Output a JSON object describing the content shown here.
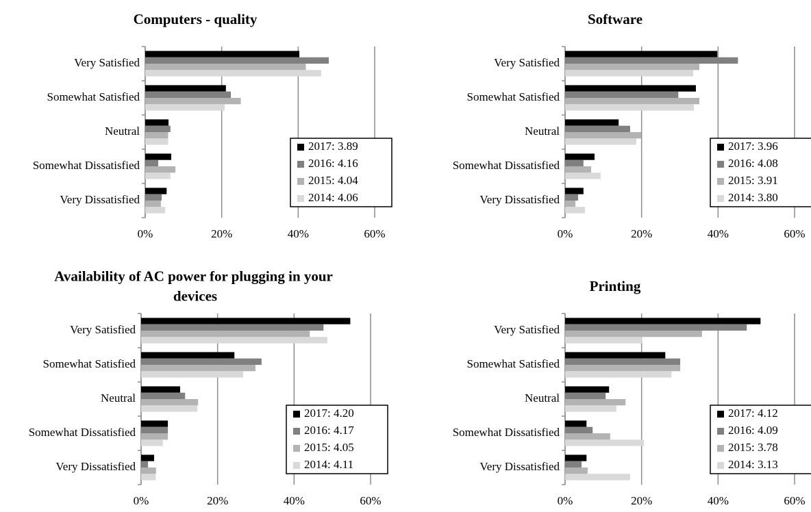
{
  "chart_data": [
    {
      "type": "bar",
      "orientation": "horizontal",
      "title": "Computers - quality",
      "categories": [
        "Very Satisfied",
        "Somewhat Satisfied",
        "Neutral",
        "Somewhat Dissatisfied",
        "Very Dissatisfied"
      ],
      "series": [
        {
          "name": "2017: 3.89",
          "color": "#000000",
          "values": [
            40.3,
            21.1,
            6.1,
            6.8,
            5.6
          ]
        },
        {
          "name": "2016: 4.16",
          "color": "#808080",
          "values": [
            48,
            22.4,
            6.6,
            3.4,
            4.3
          ]
        },
        {
          "name": "2015: 4.04",
          "color": "#b3b3b3",
          "values": [
            42,
            25,
            6,
            7.9,
            4.1
          ]
        },
        {
          "name": "2014: 4.06",
          "color": "#d9d9d9",
          "values": [
            46,
            20.8,
            6,
            6.6,
            5.2
          ]
        }
      ],
      "xlim": [
        0,
        60
      ],
      "xticks": [
        {
          "value": 0,
          "label": "0%"
        },
        {
          "value": 20,
          "label": "20%"
        },
        {
          "value": 40,
          "label": "40%"
        },
        {
          "value": 60,
          "label": "60%"
        }
      ],
      "grid": true,
      "legend": "lower right"
    },
    {
      "type": "bar",
      "orientation": "horizontal",
      "title": "Software",
      "categories": [
        "Very Satisfied",
        "Somewhat Satisfied",
        "Neutral",
        "Somewhat Dissatisfied",
        "Very Dissatisfied"
      ],
      "series": [
        {
          "name": "2017: 3.96",
          "color": "#000000",
          "values": [
            39.8,
            34.2,
            14,
            7.7,
            4.8
          ]
        },
        {
          "name": "2016: 4.08",
          "color": "#808080",
          "values": [
            45.2,
            29.6,
            17,
            4.8,
            3.4
          ]
        },
        {
          "name": "2015: 3.91",
          "color": "#b3b3b3",
          "values": [
            35.1,
            35.1,
            19.9,
            6.8,
            2.7
          ]
        },
        {
          "name": "2014: 3.80",
          "color": "#d9d9d9",
          "values": [
            33.5,
            33.7,
            18.6,
            9.3,
            5.2
          ]
        }
      ],
      "xlim": [
        0,
        60
      ],
      "xticks": [
        {
          "value": 0,
          "label": "0%"
        },
        {
          "value": 20,
          "label": "20%"
        },
        {
          "value": 40,
          "label": "40%"
        },
        {
          "value": 60,
          "label": "60%"
        }
      ],
      "grid": true,
      "legend": "lower right"
    },
    {
      "type": "bar",
      "orientation": "horizontal",
      "title": "Availability of AC power for plugging in your devices",
      "categories": [
        "Very Satisfied",
        "Somewhat Satisfied",
        "Neutral",
        "Somewhat Dissatisfied",
        "Very Dissatisfied"
      ],
      "series": [
        {
          "name": "2017: 4.20",
          "color": "#000000",
          "values": [
            54.7,
            24.4,
            10.2,
            7,
            3.4
          ]
        },
        {
          "name": "2016: 4.17",
          "color": "#808080",
          "values": [
            47.7,
            31.5,
            11.5,
            7,
            1.8
          ]
        },
        {
          "name": "2015: 4.05",
          "color": "#b3b3b3",
          "values": [
            44.1,
            29.9,
            14.9,
            7,
            3.9
          ]
        },
        {
          "name": "2014: 4.11",
          "color": "#d9d9d9",
          "values": [
            48.7,
            26.7,
            14.7,
            5.7,
            3.8
          ]
        }
      ],
      "xlim": [
        0,
        60
      ],
      "xticks": [
        {
          "value": 0,
          "label": "0%"
        },
        {
          "value": 20,
          "label": "20%"
        },
        {
          "value": 40,
          "label": "40%"
        },
        {
          "value": 60,
          "label": "60%"
        }
      ],
      "grid": true,
      "legend": "lower right"
    },
    {
      "type": "bar",
      "orientation": "horizontal",
      "title": "Printing",
      "categories": [
        "Very Satisfied",
        "Somewhat Satisfied",
        "Neutral",
        "Somewhat Dissatisfied",
        "Very Dissatisfied"
      ],
      "series": [
        {
          "name": "2017: 4.12",
          "color": "#000000",
          "values": [
            51.1,
            26.2,
            11.5,
            5.6,
            5.6
          ]
        },
        {
          "name": "2016: 4.09",
          "color": "#808080",
          "values": [
            47.5,
            30.1,
            10.6,
            7.2,
            4.3
          ]
        },
        {
          "name": "2015: 3.78",
          "color": "#b3b3b3",
          "values": [
            35.8,
            30.1,
            15.8,
            11.8,
            5.9
          ]
        },
        {
          "name": "2014: 3.13",
          "color": "#d9d9d9",
          "values": [
            20.1,
            27.8,
            13.4,
            20.6,
            17
          ]
        }
      ],
      "xlim": [
        0,
        60
      ],
      "xticks": [
        {
          "value": 0,
          "label": "0%"
        },
        {
          "value": 20,
          "label": "20%"
        },
        {
          "value": 40,
          "label": "40%"
        },
        {
          "value": 60,
          "label": "60%"
        }
      ],
      "grid": true,
      "legend": "lower right"
    }
  ]
}
